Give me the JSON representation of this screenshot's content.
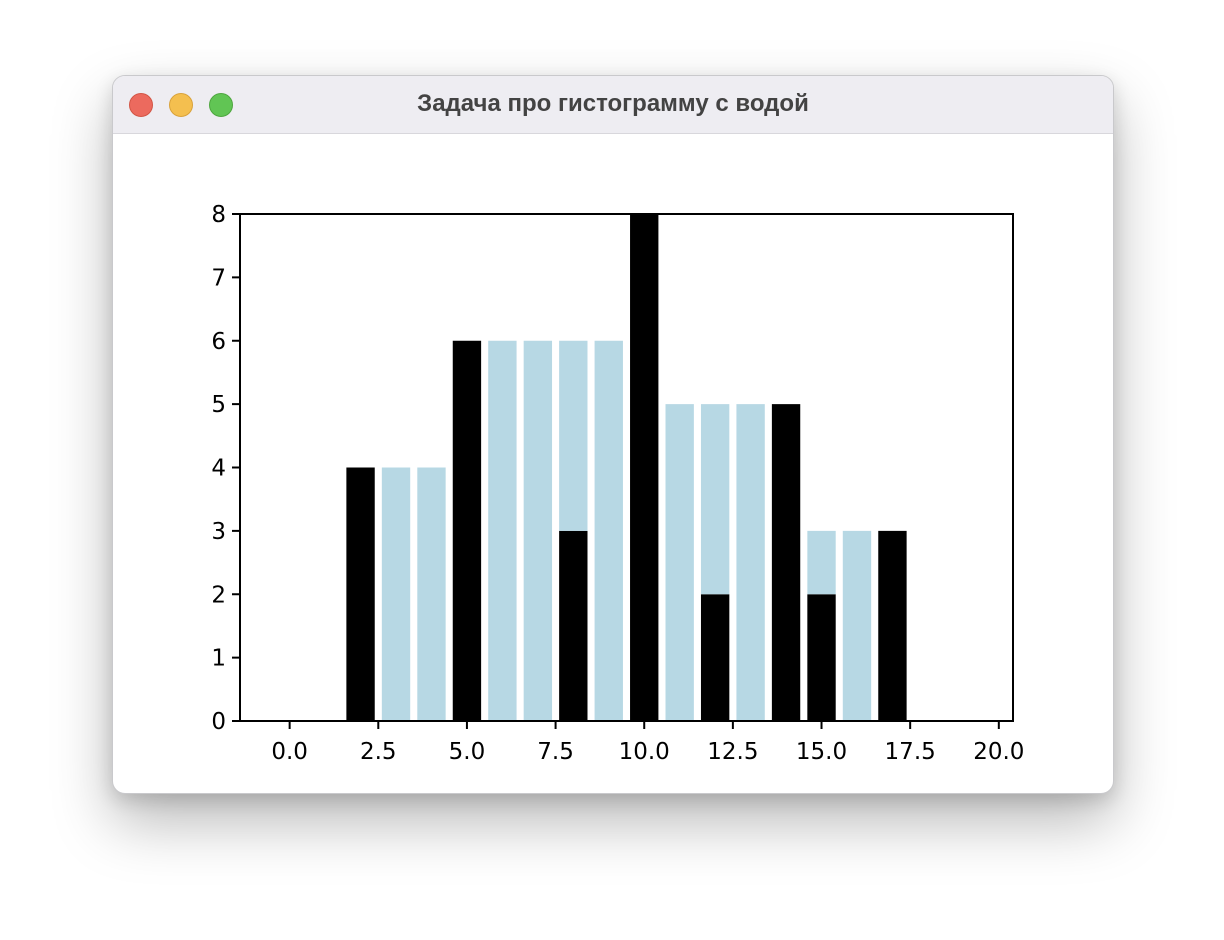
{
  "window": {
    "title": "Задача про гистограмму с водой"
  },
  "colors": {
    "bar": "#000000",
    "water": "#b7d8e4"
  },
  "chart_data": {
    "type": "bar",
    "title": "",
    "xlabel": "",
    "ylabel": "",
    "xlim": [
      -1.4,
      20.4
    ],
    "ylim": [
      0,
      8
    ],
    "xticks": [
      "0.0",
      "2.5",
      "5.0",
      "7.5",
      "10.0",
      "12.5",
      "15.0",
      "17.5",
      "20.0"
    ],
    "yticks": [
      "0",
      "1",
      "2",
      "3",
      "4",
      "5",
      "6",
      "7",
      "8"
    ],
    "bar_width": 0.8,
    "grid": false,
    "series": [
      {
        "x": [
          2,
          3,
          4,
          5,
          6,
          7,
          8,
          9,
          10,
          11,
          12,
          13,
          14,
          15,
          16,
          17
        ],
        "values": [
          4,
          0,
          0,
          6,
          0,
          0,
          3,
          0,
          8,
          0,
          2,
          0,
          5,
          2,
          0,
          3
        ]
      },
      {
        "x": [
          3,
          4,
          6,
          7,
          8,
          9,
          11,
          12,
          13,
          15,
          16
        ],
        "bottom": [
          0,
          0,
          0,
          0,
          3,
          0,
          0,
          2,
          0,
          2,
          0
        ],
        "values": [
          4,
          4,
          6,
          6,
          3,
          6,
          5,
          3,
          5,
          1,
          3
        ]
      }
    ]
  }
}
